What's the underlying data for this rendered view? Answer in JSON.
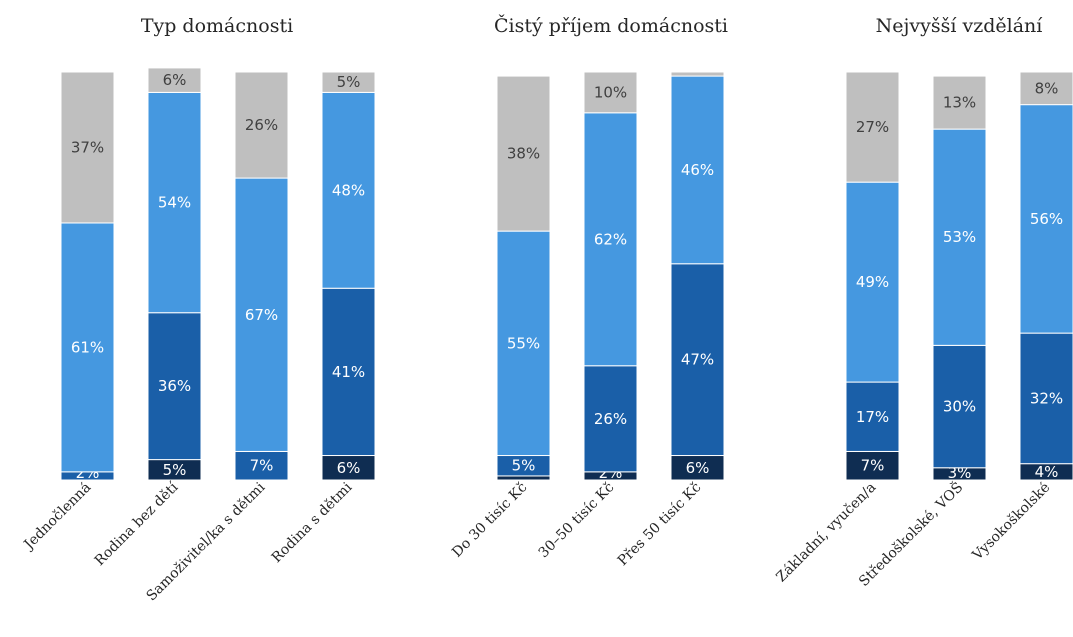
{
  "chart_data": [
    {
      "type": "bar",
      "stacked": true,
      "title": "Typ domácnosti",
      "categories": [
        "Jednočlenná",
        "Rodina bez dětí",
        "Samoživitel/ka s dětmi",
        "Rodina s dětmi"
      ],
      "series": [
        {
          "values": [
            0,
            5,
            0,
            6
          ],
          "labels": [
            "",
            "5%",
            "",
            "6%"
          ]
        },
        {
          "values": [
            2,
            0,
            7,
            0
          ],
          "labels": [
            "2%",
            "",
            "7%",
            ""
          ]
        },
        {
          "values": [
            0,
            36,
            0,
            41
          ],
          "labels": [
            "",
            "36%",
            "",
            "41%"
          ]
        },
        {
          "values": [
            61,
            54,
            67,
            48
          ],
          "labels": [
            "61%",
            "54%",
            "67%",
            "48%"
          ]
        },
        {
          "values": [
            37,
            6,
            26,
            5
          ],
          "labels": [
            "37%",
            "6%",
            "26%",
            "5%"
          ]
        }
      ],
      "ylim": [
        0,
        100
      ],
      "grid": false,
      "legend": "none"
    },
    {
      "type": "bar",
      "stacked": true,
      "title": "Čistý příjem domácnosti",
      "categories": [
        "Do 30 tisíc Kč",
        "30–50 tisíc Kč",
        "Přes 50 tisíc Kč"
      ],
      "series": [
        {
          "values": [
            1,
            2,
            6
          ],
          "labels": [
            "",
            "2%",
            "6%"
          ]
        },
        {
          "values": [
            5,
            26,
            47
          ],
          "labels": [
            "5%",
            "26%",
            "47%"
          ]
        },
        {
          "values": [
            55,
            62,
            46
          ],
          "labels": [
            "55%",
            "62%",
            "46%"
          ]
        },
        {
          "values": [
            38,
            10,
            1
          ],
          "labels": [
            "38%",
            "10%",
            ""
          ]
        }
      ],
      "ylim": [
        0,
        100
      ],
      "grid": false,
      "legend": "none"
    },
    {
      "type": "bar",
      "stacked": true,
      "title": "Nejvyšší vzdělání",
      "categories": [
        "Základní, vyučen/a",
        "Středoškolské, VOŠ",
        "Vysokoškolské"
      ],
      "series": [
        {
          "values": [
            7,
            3,
            4
          ],
          "labels": [
            "7%",
            "3%",
            "4%"
          ]
        },
        {
          "values": [
            17,
            30,
            32
          ],
          "labels": [
            "17%",
            "30%",
            "32%"
          ]
        },
        {
          "values": [
            49,
            53,
            56
          ],
          "labels": [
            "49%",
            "53%",
            "56%"
          ]
        },
        {
          "values": [
            27,
            13,
            8
          ],
          "labels": [
            "27%",
            "13%",
            "8%"
          ]
        }
      ],
      "ylim": [
        0,
        100
      ],
      "grid": false,
      "legend": "none"
    }
  ],
  "panel_series_colors": [
    [
      "#0f2d52",
      "#1a5fa8",
      "#1a5fa8",
      "#4598e0",
      "#bfbfbf"
    ],
    [
      "#0f2d52",
      "#1a5fa8",
      "#4598e0",
      "#bfbfbf"
    ],
    [
      "#0f2d52",
      "#1a5fa8",
      "#4598e0",
      "#bfbfbf"
    ]
  ],
  "label_colors": {
    "on_light": "#404040",
    "on_dark": "#ffffff"
  }
}
